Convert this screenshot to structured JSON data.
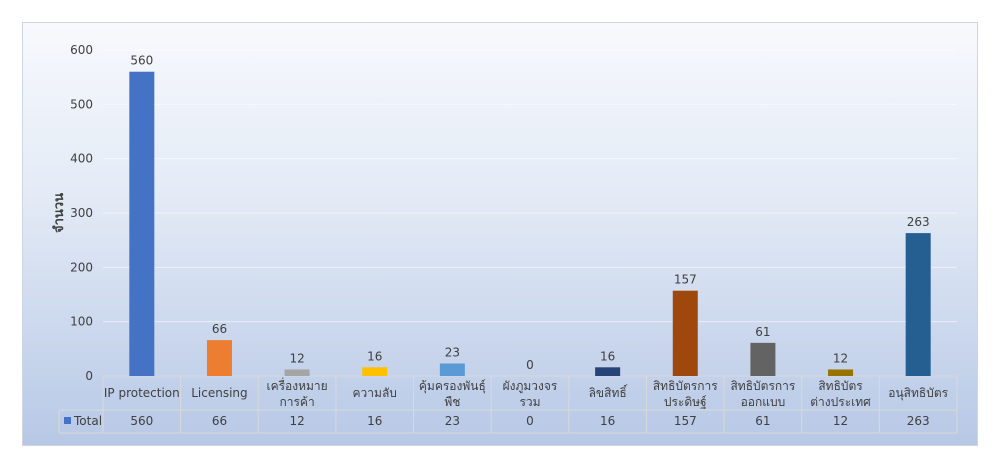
{
  "chart_data": {
    "type": "bar",
    "title": "",
    "xlabel": "",
    "ylabel": "จำนวน",
    "ylim": [
      0,
      600
    ],
    "yticks": [
      0,
      100,
      200,
      300,
      400,
      500,
      600
    ],
    "grid": true,
    "legend": "bottom-left (data table)",
    "categories": [
      [
        "IP protection"
      ],
      [
        "Licensing"
      ],
      [
        "เครื่องหมาย",
        "การค้า"
      ],
      [
        "ความลับ"
      ],
      [
        "คุ้มครองพันธุ์",
        "พืช"
      ],
      [
        "ผังภูมวงจร",
        "รวม"
      ],
      [
        "ลิขสิทธิ์"
      ],
      [
        "สิทธิบัตรการ",
        "ประดิษฐ์"
      ],
      [
        "สิทธิบัตรการ",
        "ออกแบบ"
      ],
      [
        "สิทธิบัตร",
        "ต่างประเทศ"
      ],
      [
        "อนุสิทธิบัตร"
      ]
    ],
    "series": [
      {
        "name": "Total",
        "legend_color": "#4472c4",
        "values": [
          560,
          66,
          12,
          16,
          23,
          0,
          16,
          157,
          61,
          12,
          263
        ]
      }
    ],
    "bar_colors": [
      "#4472c4",
      "#ed7d31",
      "#a5a5a5",
      "#ffc000",
      "#5b9bd5",
      "#70ad47",
      "#264478",
      "#9e480e",
      "#636363",
      "#997300",
      "#255e91"
    ]
  }
}
